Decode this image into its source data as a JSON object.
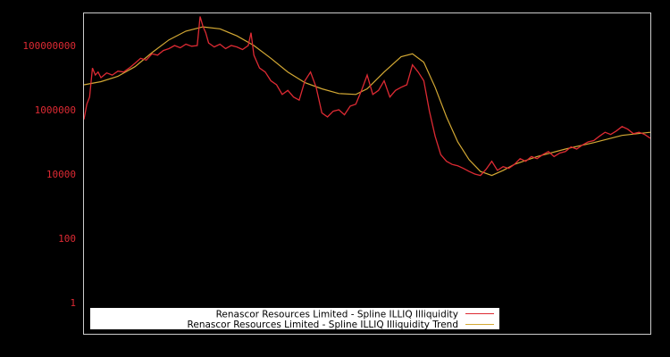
{
  "chart_data": {
    "type": "line",
    "title": "",
    "xlabel": "",
    "ylabel": "",
    "yscale": "log",
    "ylim": [
      0.3,
      1500000000
    ],
    "y_ticks": [
      {
        "label": "100000000",
        "value": 100000000
      },
      {
        "label": "1000000",
        "value": 1000000
      },
      {
        "label": "10000",
        "value": 10000
      },
      {
        "label": "100",
        "value": 100
      },
      {
        "label": "1",
        "value": 1
      }
    ],
    "grid": false,
    "legend_position": "lower-left",
    "background": "#000000",
    "frame_color": "#cccccc",
    "series": [
      {
        "name": "Renascor Resources Limited - Spline ILLIQ Illiquidity",
        "color": "#dd2a33",
        "x": [
          0.0,
          0.005,
          0.01,
          0.015,
          0.02,
          0.025,
          0.03,
          0.04,
          0.05,
          0.06,
          0.07,
          0.08,
          0.09,
          0.1,
          0.11,
          0.12,
          0.13,
          0.14,
          0.15,
          0.16,
          0.17,
          0.18,
          0.19,
          0.2,
          0.205,
          0.21,
          0.215,
          0.22,
          0.23,
          0.24,
          0.25,
          0.26,
          0.27,
          0.28,
          0.29,
          0.295,
          0.3,
          0.31,
          0.32,
          0.33,
          0.34,
          0.35,
          0.36,
          0.37,
          0.38,
          0.39,
          0.4,
          0.41,
          0.42,
          0.43,
          0.44,
          0.45,
          0.46,
          0.47,
          0.48,
          0.49,
          0.5,
          0.51,
          0.52,
          0.53,
          0.54,
          0.55,
          0.56,
          0.57,
          0.58,
          0.59,
          0.6,
          0.61,
          0.62,
          0.63,
          0.64,
          0.65,
          0.66,
          0.67,
          0.68,
          0.69,
          0.7,
          0.71,
          0.72,
          0.73,
          0.74,
          0.75,
          0.76,
          0.77,
          0.78,
          0.79,
          0.8,
          0.81,
          0.82,
          0.83,
          0.84,
          0.85,
          0.86,
          0.87,
          0.88,
          0.89,
          0.9,
          0.91,
          0.92,
          0.93,
          0.94,
          0.95,
          0.96,
          0.97,
          0.98,
          0.99,
          1.0
        ],
        "values": [
          500000,
          1500000,
          2500000,
          20000000,
          12000000,
          15000000,
          10000000,
          14000000,
          12000000,
          16000000,
          15000000,
          20000000,
          28000000,
          40000000,
          35000000,
          55000000,
          50000000,
          70000000,
          80000000,
          100000000,
          85000000,
          110000000,
          95000000,
          100000000,
          800000000,
          400000000,
          250000000,
          120000000,
          90000000,
          110000000,
          80000000,
          100000000,
          90000000,
          75000000,
          100000000,
          250000000,
          50000000,
          20000000,
          15000000,
          8000000,
          6000000,
          3000000,
          4000000,
          2500000,
          2000000,
          8000000,
          15000000,
          5000000,
          800000,
          600000,
          900000,
          1000000,
          700000,
          1300000,
          1500000,
          4000000,
          12000000,
          3000000,
          4000000,
          8000000,
          2500000,
          4000000,
          5000000,
          6000000,
          25000000,
          15000000,
          8000000,
          900000,
          150000,
          40000,
          25000,
          20000,
          18000,
          15000,
          12000,
          10000,
          9000,
          14000,
          25000,
          13000,
          17000,
          15000,
          20000,
          30000,
          25000,
          35000,
          30000,
          40000,
          50000,
          35000,
          45000,
          50000,
          70000,
          60000,
          80000,
          100000,
          110000,
          150000,
          200000,
          170000,
          220000,
          300000,
          250000,
          180000,
          200000,
          170000,
          130000
        ]
      },
      {
        "name": "Renascor Resources Limited - Spline ILLIQ Illiquidity Trend",
        "color": "#d4a934",
        "x": [
          0.0,
          0.03,
          0.06,
          0.09,
          0.12,
          0.15,
          0.18,
          0.21,
          0.24,
          0.27,
          0.3,
          0.33,
          0.36,
          0.39,
          0.42,
          0.45,
          0.48,
          0.5,
          0.53,
          0.56,
          0.58,
          0.6,
          0.62,
          0.64,
          0.66,
          0.68,
          0.7,
          0.72,
          0.74,
          0.76,
          0.8,
          0.85,
          0.9,
          0.95,
          1.0
        ],
        "values": [
          6000000,
          7500000,
          11000000,
          22000000,
          60000000,
          150000000,
          280000000,
          380000000,
          330000000,
          200000000,
          100000000,
          40000000,
          15000000,
          7000000,
          4500000,
          3200000,
          3000000,
          4500000,
          15000000,
          45000000,
          55000000,
          30000000,
          5000000,
          600000,
          100000,
          28000,
          12000,
          9000,
          13000,
          20000,
          35000,
          60000,
          95000,
          160000,
          200000
        ]
      }
    ]
  },
  "legend": {
    "items": [
      {
        "label": "Renascor Resources Limited - Spline ILLIQ Illiquidity",
        "color": "#dd2a33"
      },
      {
        "label": "Renascor Resources Limited - Spline ILLIQ Illiquidity Trend",
        "color": "#d4a934"
      }
    ]
  }
}
